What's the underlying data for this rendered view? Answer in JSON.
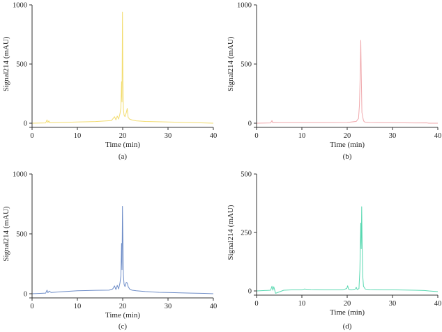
{
  "chart_data": [
    {
      "type": "line",
      "panel_label": "(a)",
      "xlabel": "Time (min)",
      "ylabel": "Signal214 (mAU)",
      "xlim": [
        0,
        40
      ],
      "ylim": [
        0,
        1000
      ],
      "xticks": [
        0,
        10,
        20,
        30,
        40
      ],
      "yticks": [
        0,
        500,
        1000
      ],
      "grid": false,
      "color": "#f2dc6e",
      "series": [
        {
          "name": "Signal214",
          "x": [
            0,
            3.0,
            3.3,
            3.5,
            3.7,
            3.9,
            4.2,
            6,
            10,
            14,
            17.5,
            18.2,
            18.5,
            18.8,
            19.1,
            19.4,
            19.6,
            19.75,
            19.85,
            19.95,
            20.05,
            20.15,
            20.3,
            20.5,
            20.8,
            21.0,
            21.2,
            21.5,
            22,
            23,
            25,
            30,
            35,
            38,
            40
          ],
          "y": [
            0,
            2,
            28,
            5,
            20,
            3,
            4,
            6,
            10,
            14,
            22,
            55,
            28,
            60,
            35,
            80,
            130,
            350,
            180,
            940,
            350,
            120,
            70,
            55,
            90,
            125,
            50,
            35,
            28,
            20,
            15,
            10,
            5,
            2,
            0
          ]
        }
      ]
    },
    {
      "type": "line",
      "panel_label": "(b)",
      "xlabel": "Time (min)",
      "ylabel": "Signal214 (mAU)",
      "xlim": [
        0,
        40
      ],
      "ylim": [
        0,
        1000
      ],
      "xticks": [
        0,
        10,
        20,
        30,
        40
      ],
      "yticks": [
        0,
        500,
        1000
      ],
      "grid": false,
      "color": "#f0a8ac",
      "series": [
        {
          "name": "Signal214",
          "x": [
            0,
            3.1,
            3.4,
            3.6,
            3.9,
            5,
            10,
            15,
            20,
            22,
            22.5,
            22.7,
            22.9,
            23.0,
            23.1,
            23.25,
            23.4,
            23.55,
            23.7,
            24,
            25,
            30,
            35,
            37.5,
            38,
            40
          ],
          "y": [
            0,
            2,
            22,
            3,
            6,
            5,
            5,
            5,
            6,
            15,
            40,
            150,
            450,
            700,
            420,
            90,
            60,
            30,
            15,
            8,
            6,
            4,
            2,
            3,
            0,
            0
          ]
        }
      ]
    },
    {
      "type": "line",
      "panel_label": "(c)",
      "xlabel": "Time (min)",
      "ylabel": "Signal214 (mAU)",
      "xlim": [
        0,
        40
      ],
      "ylim": [
        0,
        1000
      ],
      "xticks": [
        0,
        10,
        20,
        30,
        40
      ],
      "yticks": [
        0,
        500,
        1000
      ],
      "grid": false,
      "color": "#6d8cc7",
      "series": [
        {
          "name": "Signal214",
          "x": [
            0,
            3.0,
            3.3,
            3.5,
            3.8,
            4.2,
            6,
            10,
            14,
            17.0,
            17.8,
            18.2,
            18.5,
            18.8,
            19.1,
            19.4,
            19.6,
            19.75,
            19.85,
            19.95,
            20.05,
            20.15,
            20.3,
            20.5,
            20.8,
            21.0,
            21.2,
            21.5,
            22,
            23,
            25,
            28,
            30,
            35,
            38,
            40
          ],
          "y": [
            0,
            5,
            30,
            8,
            22,
            10,
            15,
            25,
            28,
            30,
            40,
            65,
            35,
            70,
            40,
            90,
            150,
            420,
            200,
            730,
            430,
            160,
            80,
            60,
            95,
            90,
            60,
            40,
            30,
            25,
            18,
            12,
            10,
            5,
            3,
            0
          ]
        }
      ]
    },
    {
      "type": "line",
      "panel_label": "(d)",
      "xlabel": "Time (min)",
      "ylabel": "Signal214 (mAU)",
      "xlim": [
        0,
        40
      ],
      "ylim": [
        0,
        500
      ],
      "xticks": [
        0,
        10,
        20,
        30,
        40
      ],
      "yticks": [
        0,
        250,
        500
      ],
      "grid": false,
      "color": "#57d8b0",
      "series": [
        {
          "name": "Signal214",
          "x": [
            0,
            3.1,
            3.4,
            3.6,
            3.8,
            4.2,
            6,
            8,
            10,
            10.5,
            12,
            15,
            19,
            19.9,
            20.1,
            20.3,
            20.5,
            21,
            21.8,
            22.0,
            22.2,
            22.6,
            22.8,
            23.0,
            23.1,
            23.2,
            23.3,
            23.45,
            23.6,
            24,
            25,
            28,
            30,
            35,
            37,
            38,
            40
          ],
          "y": [
            0,
            3,
            20,
            3,
            18,
            -10,
            3,
            5,
            5,
            8,
            6,
            5,
            5,
            10,
            22,
            8,
            6,
            5,
            8,
            16,
            6,
            10,
            90,
            290,
            180,
            360,
            200,
            60,
            20,
            8,
            6,
            5,
            5,
            3,
            2,
            0,
            -3
          ]
        }
      ]
    }
  ]
}
